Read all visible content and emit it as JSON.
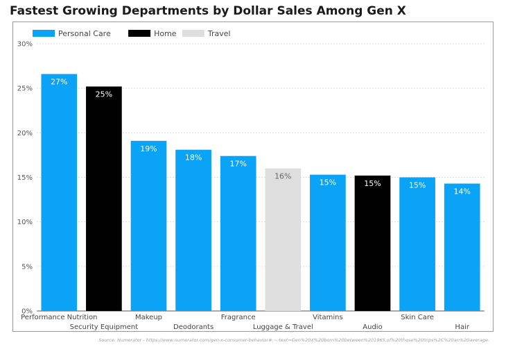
{
  "chart_data": {
    "type": "bar",
    "title": "Fastest Growing Departments by Dollar Sales Among Gen X",
    "xlabel": "",
    "ylabel": "",
    "ylim": [
      0,
      30
    ],
    "y_ticks": [
      "0%",
      "5%",
      "10%",
      "15%",
      "20%",
      "25%",
      "30%"
    ],
    "y_tick_values": [
      0,
      5,
      10,
      15,
      20,
      25,
      30
    ],
    "grid": true,
    "legend_position": "top-left",
    "legend": [
      {
        "name": "Personal Care",
        "color": "#0aa3f5"
      },
      {
        "name": "Home",
        "color": "#000000"
      },
      {
        "name": "Travel",
        "color": "#dedede"
      }
    ],
    "categories": [
      "Performance Nutrition",
      "Security Equipment",
      "Makeup",
      "Deodorants",
      "Fragrance",
      "Luggage & Travel",
      "Vitamins",
      "Audio",
      "Skin Care",
      "Hair"
    ],
    "values": [
      26.6,
      25.2,
      19.1,
      18.1,
      17.4,
      16.0,
      15.3,
      15.2,
      15.0,
      14.3
    ],
    "data_labels": [
      "27%",
      "25%",
      "19%",
      "18%",
      "17%",
      "16%",
      "15%",
      "15%",
      "15%",
      "14%"
    ],
    "bar_groups": [
      "Personal Care",
      "Home",
      "Personal Care",
      "Personal Care",
      "Personal Care",
      "Travel",
      "Personal Care",
      "Home",
      "Personal Care",
      "Personal Care"
    ],
    "source": "Source: Numerator - https://www.numerator.com/gen-x-consumer-behavior#:~:text=Gen%20X%20born%20between%201965,of%20those%20trips%2C%20an%20average."
  }
}
